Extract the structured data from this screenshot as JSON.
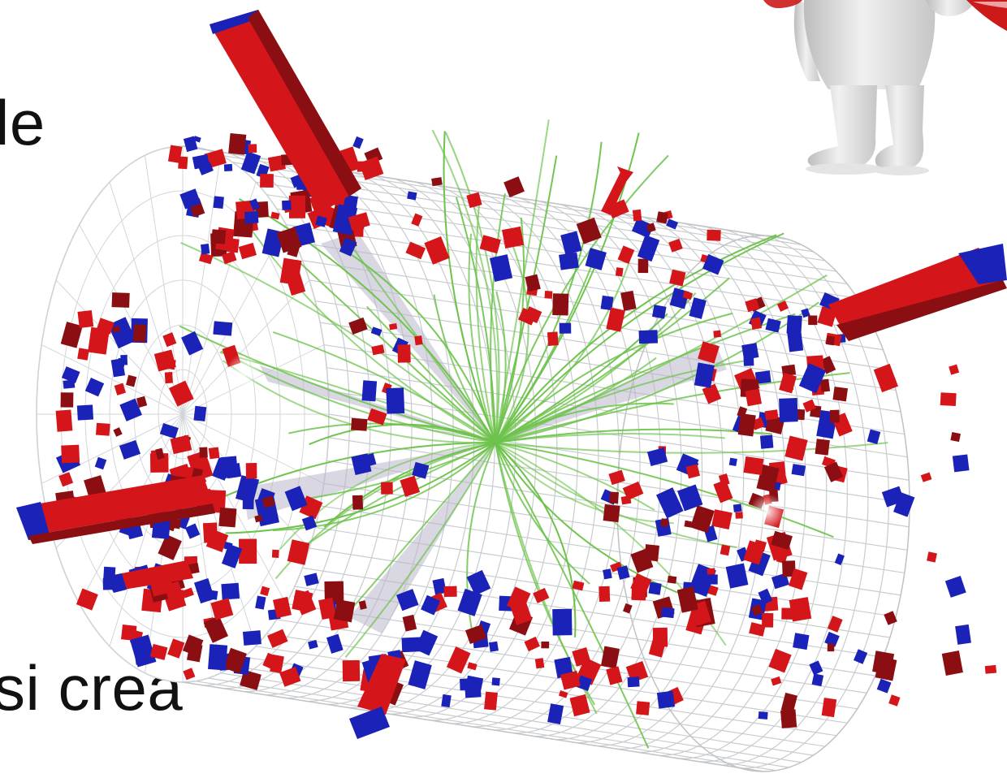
{
  "slide": {
    "text_top": "le",
    "text_bottom": "si crea"
  },
  "illustration": {
    "subject": "particle-collision-event-display",
    "colors": {
      "grid": "#c9cccf",
      "tracks": "#6cc24a",
      "energy_red": "#d4161b",
      "energy_dark_red": "#8b0f12",
      "energy_blue": "#1a22b8",
      "jet_shadow": "#b9b6c9"
    }
  },
  "mascot": {
    "subject": "white-3d-figure",
    "accent_color": "#cc1a1a"
  }
}
